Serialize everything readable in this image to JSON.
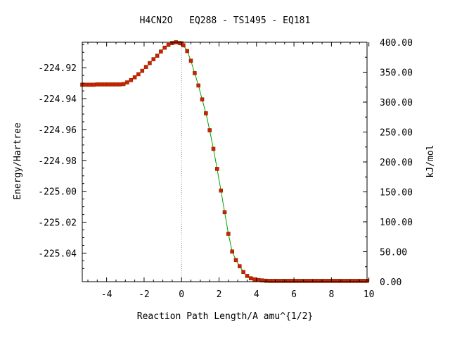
{
  "chart_data": {
    "type": "line",
    "title": "H4CN2O   EQ288 - TS1495 - EQ181",
    "xlabel": "Reaction Path Length/A amu^{1/2}",
    "ylabel": "Energy/Hartree",
    "y2label": "kJ/mol",
    "xlim": [
      -5.3,
      9.9
    ],
    "ylim": [
      -225.0585,
      -224.9035
    ],
    "y2lim": [
      0,
      400
    ],
    "x_ticks": [
      -4,
      -2,
      0,
      2,
      4,
      6,
      8,
      10
    ],
    "x_tick_labels": [
      "-4",
      "-2",
      "0",
      "2",
      "4",
      "6",
      "8",
      "10"
    ],
    "y_ticks": [
      -224.92,
      -224.94,
      -224.96,
      -224.98,
      -225.0,
      -225.02,
      -225.04
    ],
    "y_tick_labels": [
      "-224.92",
      "-224.94",
      "-224.96",
      "-224.98",
      "-225.00",
      "-225.02",
      "-225.04"
    ],
    "y2_ticks": [
      400,
      350,
      300,
      250,
      200,
      150,
      100,
      50,
      0
    ],
    "y2_tick_labels": [
      "400.00",
      "350.00",
      "300.00",
      "250.00",
      "200.00",
      "150.00",
      "100.00",
      "50.00",
      "0.00"
    ],
    "ts_marker_x": 0,
    "colors": {
      "line": "#00a000",
      "marker": "#d02000",
      "ts_line": "#888888",
      "axis": "#000000"
    },
    "series": [
      {
        "x": [
          -5.3,
          -5.1,
          -4.9,
          -4.7,
          -4.5,
          -4.3,
          -4.1,
          -3.9,
          -3.7,
          -3.5,
          -3.3,
          -3.1,
          -2.9,
          -2.7,
          -2.5,
          -2.3,
          -2.1,
          -1.9,
          -1.7,
          -1.5,
          -1.3,
          -1.1,
          -0.9,
          -0.7,
          -0.5,
          -0.3,
          -0.1,
          0.0,
          0.1,
          0.3,
          0.5,
          0.7,
          0.9,
          1.1,
          1.3,
          1.5,
          1.7,
          1.9,
          2.1,
          2.3,
          2.5,
          2.7,
          2.9,
          3.1,
          3.3,
          3.5,
          3.7,
          3.9,
          4.1,
          4.3,
          4.5,
          4.7,
          4.9,
          5.1,
          5.3,
          5.5,
          5.7,
          5.9,
          6.1,
          6.3,
          6.5,
          6.7,
          6.9,
          7.1,
          7.3,
          7.5,
          7.7,
          7.9,
          8.1,
          8.3,
          8.5,
          8.7,
          8.9,
          9.1,
          9.3,
          9.5,
          9.7,
          9.9
        ],
        "y": [
          -224.931,
          -224.931,
          -224.931,
          -224.931,
          -224.9308,
          -224.9308,
          -224.9308,
          -224.9308,
          -224.9308,
          -224.9308,
          -224.9308,
          -224.9306,
          -224.9295,
          -224.928,
          -224.9262,
          -224.9242,
          -224.922,
          -224.9195,
          -224.917,
          -224.9145,
          -224.9122,
          -224.9095,
          -224.907,
          -224.9052,
          -224.904,
          -224.9035,
          -224.904,
          -224.9042,
          -224.9055,
          -224.9092,
          -224.9155,
          -224.9235,
          -224.9315,
          -224.9405,
          -224.9495,
          -224.9605,
          -224.9725,
          -224.9855,
          -224.9995,
          -225.0135,
          -225.0275,
          -225.039,
          -225.0445,
          -225.0485,
          -225.0522,
          -225.0548,
          -225.0563,
          -225.057,
          -225.0574,
          -225.0577,
          -225.0579,
          -225.058,
          -225.058,
          -225.058,
          -225.058,
          -225.058,
          -225.058,
          -225.058,
          -225.058,
          -225.058,
          -225.058,
          -225.058,
          -225.058,
          -225.058,
          -225.058,
          -225.058,
          -225.058,
          -225.058,
          -225.058,
          -225.058,
          -225.058,
          -225.058,
          -225.058,
          -225.058,
          -225.058,
          -225.058,
          -225.058,
          -225.058
        ]
      }
    ]
  }
}
